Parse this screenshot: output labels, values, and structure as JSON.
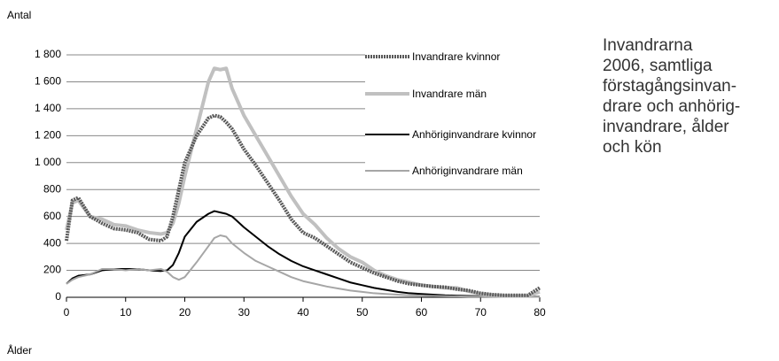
{
  "chart_data": {
    "type": "line",
    "y_label": "Antal",
    "x_label": "Ålder",
    "caption_lines": [
      "Invandrarna",
      "2006, samtliga",
      "förstagångsinvan-",
      "drare och anhörig-",
      "invandrare, ålder",
      "och kön"
    ],
    "x": [
      0,
      1,
      2,
      4,
      6,
      8,
      10,
      12,
      14,
      16,
      17,
      18,
      19,
      20,
      22,
      24,
      25,
      26,
      27,
      28,
      30,
      32,
      34,
      36,
      38,
      40,
      42,
      44,
      46,
      48,
      50,
      52,
      54,
      56,
      58,
      60,
      62,
      64,
      66,
      68,
      70,
      72,
      74,
      76,
      78,
      80
    ],
    "series": [
      {
        "name": "Invandrare kvinnor",
        "color": "#595959",
        "values": [
          420,
          720,
          740,
          600,
          550,
          510,
          500,
          480,
          430,
          420,
          450,
          600,
          800,
          1000,
          1200,
          1330,
          1350,
          1340,
          1300,
          1250,
          1100,
          980,
          850,
          720,
          580,
          480,
          440,
          380,
          320,
          260,
          220,
          180,
          150,
          120,
          100,
          90,
          80,
          75,
          60,
          50,
          30,
          20,
          15,
          15,
          15,
          70
        ]
      },
      {
        "name": "Invandrare män",
        "color": "#c0c0c0",
        "values": [
          500,
          700,
          720,
          600,
          580,
          540,
          530,
          500,
          480,
          470,
          480,
          550,
          700,
          900,
          1250,
          1600,
          1700,
          1690,
          1700,
          1550,
          1350,
          1200,
          1050,
          900,
          750,
          620,
          540,
          440,
          360,
          300,
          260,
          200,
          160,
          130,
          110,
          90,
          80,
          70,
          70,
          45,
          25,
          15,
          10,
          10,
          10,
          40
        ]
      },
      {
        "name": "Anhöriginvandrare kvinnor",
        "color": "#000000",
        "values": [
          100,
          140,
          160,
          170,
          200,
          210,
          210,
          210,
          200,
          195,
          200,
          240,
          330,
          450,
          560,
          620,
          640,
          630,
          620,
          600,
          520,
          450,
          380,
          320,
          270,
          230,
          200,
          170,
          140,
          110,
          90,
          70,
          55,
          40,
          30,
          25,
          20,
          15,
          12,
          10,
          8,
          5,
          5,
          5,
          5,
          5
        ]
      },
      {
        "name": "Anhöriginvandrare män",
        "color": "#a6a6a6",
        "values": [
          100,
          130,
          150,
          170,
          210,
          210,
          200,
          210,
          200,
          210,
          190,
          150,
          130,
          150,
          260,
          380,
          440,
          460,
          450,
          400,
          330,
          270,
          230,
          190,
          150,
          120,
          100,
          80,
          65,
          50,
          40,
          30,
          25,
          20,
          15,
          12,
          10,
          8,
          7,
          5,
          5,
          4,
          3,
          3,
          3,
          3
        ]
      }
    ],
    "xlim": [
      0,
      80
    ],
    "xticks": [
      0,
      10,
      20,
      30,
      40,
      50,
      60,
      70,
      80
    ],
    "ylim": [
      0,
      1800
    ],
    "yticks": [
      0,
      200,
      400,
      600,
      800,
      {
        "value": 1000,
        "label": "1 000"
      },
      {
        "value": 1200,
        "label": "1 200"
      },
      {
        "value": 1400,
        "label": "1 400"
      },
      {
        "value": 1600,
        "label": "1 600"
      },
      {
        "value": 1800,
        "label": "1 800"
      }
    ],
    "grid": true
  }
}
